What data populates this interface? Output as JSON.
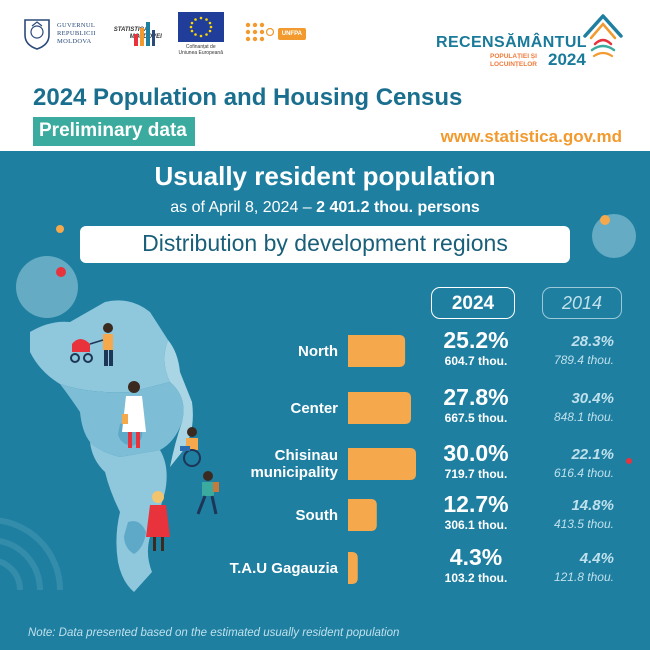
{
  "header": {
    "gov_lines": [
      "GUVERNUL",
      "REPUBLICII",
      "MOLDOVA"
    ],
    "statistica_lines": [
      "STATISTICA",
      "MOLDOVEI"
    ],
    "eu_caption_lines": [
      "Cofinanțat de",
      "Uniunea Europeană"
    ],
    "unfpa_label": "UNFPA",
    "census_brand": "RECENSĂMÂNTUL",
    "census_sub_lines": [
      "POPULAȚIEI ȘI",
      "LOCUINȚELOR"
    ],
    "census_year": "2024",
    "title": "2024 Population and Housing Census",
    "badge": "Preliminary data",
    "url": "www.statistica.gov.md"
  },
  "headline": {
    "line1": "Usually resident population",
    "date_part": "as of April 8, 2024 – ",
    "total_part": "2 401.2 thou. persons",
    "subtitle": "Distribution by development regions"
  },
  "colors": {
    "bar": "#f5a94c",
    "background": "#1e7fa0",
    "map_light": "#8fc7dc",
    "map_dark": "#5fa9c8",
    "accent_red": "#e8323c"
  },
  "chart_data": {
    "type": "bar",
    "orientation": "horizontal",
    "series_labels": [
      "2024",
      "2014"
    ],
    "categories": [
      "North",
      "Center",
      "Chisinau municipality",
      "South",
      "T.A.U Gagauzia"
    ],
    "category_lines": [
      [
        "North"
      ],
      [
        "Center"
      ],
      [
        "Chisinau",
        "municipality"
      ],
      [
        "South"
      ],
      [
        "T.A.U Gagauzia"
      ]
    ],
    "values_2024_pct": [
      25.2,
      27.8,
      30.0,
      12.7,
      4.3
    ],
    "labels_2024_pct": [
      "25.2%",
      "27.8%",
      "30.0%",
      "12.7%",
      "4.3%"
    ],
    "labels_2024_thou": [
      "604.7 thou.",
      "667.5 thou.",
      "719.7 thou.",
      "306.1 thou.",
      "103.2 thou."
    ],
    "values_2014_pct": [
      28.3,
      30.4,
      22.1,
      14.8,
      4.4
    ],
    "labels_2014_pct": [
      "28.3%",
      "30.4%",
      "22.1%",
      "14.8%",
      "4.4%"
    ],
    "labels_2014_thou": [
      "789.4 thou.",
      "848.1 thou.",
      "616.4 thou.",
      "413.5 thou.",
      "121.8 thou."
    ]
  },
  "note": "Note: Data presented based on the estimated usually resident population"
}
